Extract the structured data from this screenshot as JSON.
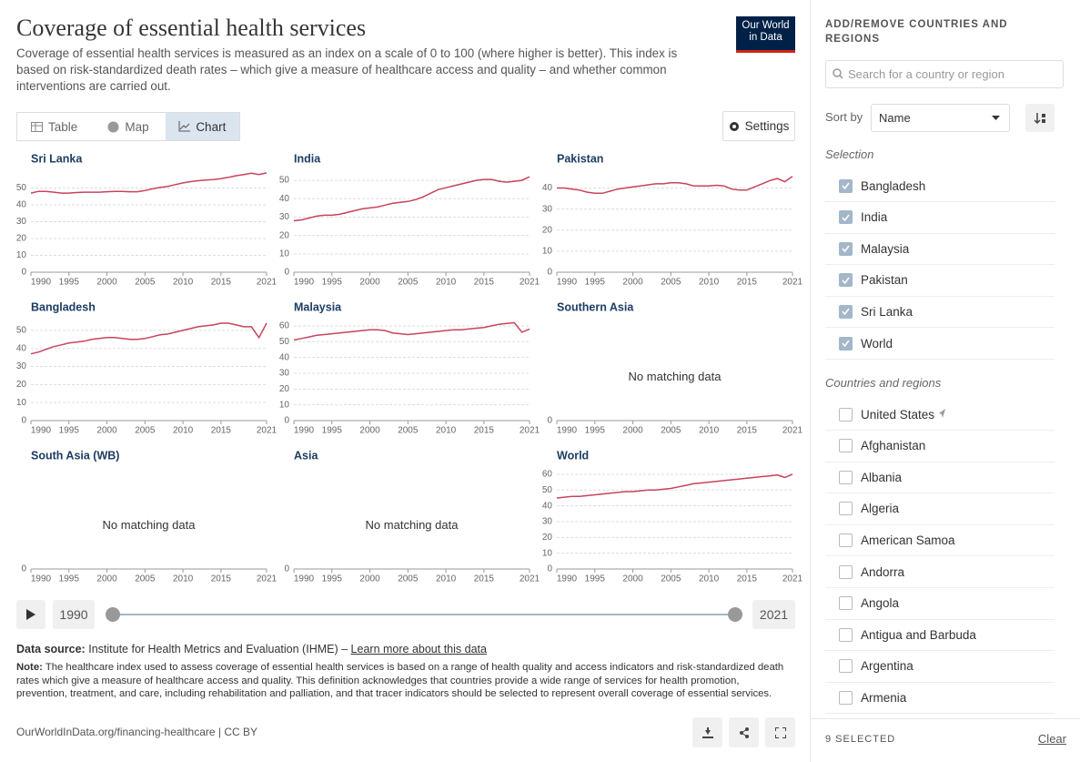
{
  "header": {
    "title": "Coverage of essential health services",
    "subtitle": "Coverage of essential health services is measured as an index on a scale of 0 to 100 (where higher is better). This index is based on risk-standardized death rates – which give a measure of healthcare access and quality – and whether common interventions are carried out.",
    "logo": [
      "Our World",
      "in Data"
    ]
  },
  "tabs": [
    "Table",
    "Map",
    "Chart"
  ],
  "settings": "Settings",
  "chart_data": [
    {
      "type": "line",
      "title": "Sri Lanka",
      "color": "#c8435e",
      "xlim": [
        1990,
        2021
      ],
      "xticks": [
        1990,
        1995,
        2000,
        2005,
        2010,
        2015,
        2021
      ],
      "ylim": [
        0,
        60
      ],
      "yticks": [
        0,
        10,
        20,
        30,
        40,
        50
      ],
      "grid": true,
      "x": [
        1990,
        1991,
        1992,
        1993,
        1994,
        1995,
        1996,
        1997,
        1998,
        1999,
        2000,
        2001,
        2002,
        2003,
        2004,
        2005,
        2006,
        2007,
        2008,
        2009,
        2010,
        2011,
        2012,
        2013,
        2014,
        2015,
        2016,
        2017,
        2018,
        2019,
        2020,
        2021
      ],
      "values": [
        47,
        48,
        48,
        47.5,
        47,
        47,
        47.3,
        47.5,
        47.5,
        47.5,
        47.8,
        48,
        48,
        47.8,
        47.8,
        48.5,
        49.5,
        50.3,
        51,
        52,
        53,
        53.8,
        54.3,
        54.7,
        55,
        55.5,
        56.3,
        57.3,
        58,
        58.8,
        58,
        59
      ]
    },
    {
      "type": "line",
      "title": "India",
      "color": "#c8435e",
      "xlim": [
        1990,
        2021
      ],
      "xticks": [
        1990,
        1995,
        2000,
        2005,
        2010,
        2015,
        2021
      ],
      "ylim": [
        0,
        55
      ],
      "yticks": [
        0,
        10,
        20,
        30,
        40,
        50
      ],
      "grid": true,
      "x": [
        1990,
        1991,
        1992,
        1993,
        1994,
        1995,
        1996,
        1997,
        1998,
        1999,
        2000,
        2001,
        2002,
        2003,
        2004,
        2005,
        2006,
        2007,
        2008,
        2009,
        2010,
        2011,
        2012,
        2013,
        2014,
        2015,
        2016,
        2017,
        2018,
        2019,
        2020,
        2021
      ],
      "values": [
        28,
        28.5,
        29.5,
        30.5,
        31,
        31,
        31.5,
        32.5,
        33.5,
        34.5,
        35,
        35.5,
        36.5,
        37.5,
        38,
        38.5,
        39.5,
        41,
        43,
        45,
        46,
        47,
        48,
        49,
        50,
        50.5,
        50.5,
        49.5,
        49,
        49.5,
        50,
        52
      ]
    },
    {
      "type": "line",
      "title": "Pakistan",
      "color": "#c8435e",
      "xlim": [
        1990,
        2021
      ],
      "xticks": [
        1990,
        1995,
        2000,
        2005,
        2010,
        2015,
        2021
      ],
      "ylim": [
        0,
        48
      ],
      "yticks": [
        0,
        10,
        20,
        30,
        40
      ],
      "grid": true,
      "x": [
        1990,
        1991,
        1992,
        1993,
        1994,
        1995,
        1996,
        1997,
        1998,
        1999,
        2000,
        2001,
        2002,
        2003,
        2004,
        2005,
        2006,
        2007,
        2008,
        2009,
        2010,
        2011,
        2012,
        2013,
        2014,
        2015,
        2016,
        2017,
        2018,
        2019,
        2020,
        2021
      ],
      "values": [
        40,
        40,
        39.5,
        39,
        38,
        37.5,
        37.5,
        38.5,
        39.5,
        40,
        40.5,
        41,
        41.5,
        42,
        42,
        42.5,
        42.5,
        42,
        41,
        41,
        41,
        41.3,
        41,
        39.5,
        39,
        39,
        40.5,
        42,
        43.5,
        44.5,
        43,
        45.5
      ]
    },
    {
      "type": "line",
      "title": "Bangladesh",
      "color": "#c8435e",
      "xlim": [
        1990,
        2021
      ],
      "xticks": [
        1990,
        1995,
        2000,
        2005,
        2010,
        2015,
        2021
      ],
      "ylim": [
        0,
        56
      ],
      "yticks": [
        0,
        10,
        20,
        30,
        40,
        50
      ],
      "grid": true,
      "x": [
        1990,
        1991,
        1992,
        1993,
        1994,
        1995,
        1996,
        1997,
        1998,
        1999,
        2000,
        2001,
        2002,
        2003,
        2004,
        2005,
        2006,
        2007,
        2008,
        2009,
        2010,
        2011,
        2012,
        2013,
        2014,
        2015,
        2016,
        2017,
        2018,
        2019,
        2020,
        2021
      ],
      "values": [
        37,
        38,
        39.5,
        41,
        42,
        43,
        43.5,
        44,
        45,
        45.5,
        46,
        46,
        45.5,
        45,
        45,
        45.5,
        46.5,
        47.5,
        48,
        49,
        50,
        51,
        52,
        52.5,
        53,
        54,
        54,
        53,
        52,
        52,
        46,
        54
      ]
    },
    {
      "type": "line",
      "title": "Malaysia",
      "color": "#c8435e",
      "xlim": [
        1990,
        2021
      ],
      "xticks": [
        1990,
        1995,
        2000,
        2005,
        2010,
        2015,
        2021
      ],
      "ylim": [
        0,
        64
      ],
      "yticks": [
        0,
        10,
        20,
        30,
        40,
        50,
        60
      ],
      "grid": true,
      "x": [
        1990,
        1991,
        1992,
        1993,
        1994,
        1995,
        1996,
        1997,
        1998,
        1999,
        2000,
        2001,
        2002,
        2003,
        2004,
        2005,
        2006,
        2007,
        2008,
        2009,
        2010,
        2011,
        2012,
        2013,
        2014,
        2015,
        2016,
        2017,
        2018,
        2019,
        2020,
        2021
      ],
      "values": [
        51,
        52,
        53,
        54,
        54.5,
        55,
        55.5,
        56,
        56.5,
        57,
        57.5,
        57.5,
        57,
        55.5,
        55,
        54.5,
        55,
        55.5,
        56,
        56.5,
        57,
        57.5,
        57.5,
        58,
        58.5,
        59,
        60,
        61,
        61.5,
        62,
        56,
        58
      ]
    },
    {
      "type": "line",
      "title": "Southern Asia",
      "message": "No matching data",
      "xlim": [
        1990,
        2021
      ],
      "xticks": [
        1990,
        1995,
        2000,
        2005,
        2010,
        2015,
        2021
      ],
      "ylim": [
        0,
        60
      ],
      "yticks": [
        0
      ]
    },
    {
      "type": "line",
      "title": "South Asia (WB)",
      "message": "No matching data",
      "xlim": [
        1990,
        2021
      ],
      "xticks": [
        1990,
        1995,
        2000,
        2005,
        2010,
        2015,
        2021
      ],
      "ylim": [
        0,
        60
      ],
      "yticks": [
        0
      ]
    },
    {
      "type": "line",
      "title": "Asia",
      "message": "No matching data",
      "xlim": [
        1990,
        2021
      ],
      "xticks": [
        1990,
        1995,
        2000,
        2005,
        2010,
        2015,
        2021
      ],
      "ylim": [
        0,
        60
      ],
      "yticks": [
        0
      ]
    },
    {
      "type": "line",
      "title": "World",
      "color": "#c8435e",
      "xlim": [
        1990,
        2021
      ],
      "xticks": [
        1990,
        1995,
        2000,
        2005,
        2010,
        2015,
        2021
      ],
      "ylim": [
        0,
        64
      ],
      "yticks": [
        0,
        10,
        20,
        30,
        40,
        50,
        60
      ],
      "grid": true,
      "x": [
        1990,
        1991,
        1992,
        1993,
        1994,
        1995,
        1996,
        1997,
        1998,
        1999,
        2000,
        2001,
        2002,
        2003,
        2004,
        2005,
        2006,
        2007,
        2008,
        2009,
        2010,
        2011,
        2012,
        2013,
        2014,
        2015,
        2016,
        2017,
        2018,
        2019,
        2020,
        2021
      ],
      "values": [
        45,
        45.5,
        46,
        46,
        46.5,
        47,
        47.5,
        48,
        48.5,
        49,
        49,
        49.5,
        50,
        50,
        50.5,
        51,
        52,
        53,
        54,
        54.5,
        55,
        55.5,
        56,
        56.5,
        57,
        57.5,
        58,
        58.5,
        59,
        59.5,
        58,
        60
      ]
    }
  ],
  "timeline": {
    "start": "1990",
    "end": "2021"
  },
  "footer": {
    "source_label": "Data source:",
    "source": "Institute for Health Metrics and Evaluation (IHME) –",
    "source_link": "Learn more about this data",
    "note_label": "Note:",
    "note": "The healthcare index used to assess coverage of essential health services is based on a range of health quality and access indicators and risk-standardized death rates which give a measure of healthcare access and quality. This definition acknowledges that countries provide a wide range of services for health promotion, prevention, treatment, and care, including rehabilitation and palliation, and that tracer indicators should be selected to represent overall coverage of essential services.",
    "url": "OurWorldInData.org/financing-healthcare | CC BY"
  },
  "sidebar": {
    "title": "ADD/REMOVE COUNTRIES AND REGIONS",
    "search_placeholder": "Search for a country or region",
    "sort_label": "Sort by",
    "sort_value": "Name",
    "selection_label": "Selection",
    "selected": [
      "Bangladesh",
      "India",
      "Malaysia",
      "Pakistan",
      "Sri Lanka",
      "World"
    ],
    "countries_label": "Countries and regions",
    "countries": [
      "United States",
      "Afghanistan",
      "Albania",
      "Algeria",
      "American Samoa",
      "Andorra",
      "Angola",
      "Antigua and Barbuda",
      "Argentina",
      "Armenia"
    ],
    "selected_count": "9 SELECTED",
    "clear": "Clear"
  }
}
